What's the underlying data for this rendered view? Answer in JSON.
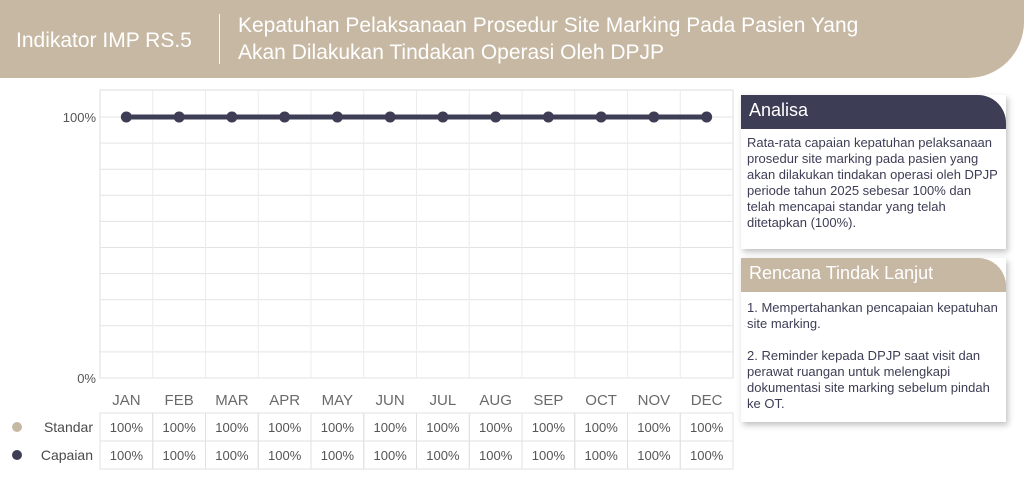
{
  "header": {
    "indicator": "Indikator IMP RS.5",
    "title_line1": "Kepatuhan Pelaksanaan Prosedur Site Marking Pada Pasien Yang",
    "title_line2": "Akan Dilakukan Tindakan Operasi Oleh DPJP"
  },
  "colors": {
    "header_bg": "#c7b8a3",
    "standar": "#c7b8a3",
    "capaian": "#3d3d55"
  },
  "chart_data": {
    "type": "line",
    "categories": [
      "JAN",
      "FEB",
      "MAR",
      "APR",
      "MAY",
      "JUN",
      "JUL",
      "AUG",
      "SEP",
      "OCT",
      "NOV",
      "DEC"
    ],
    "series": [
      {
        "name": "Standar",
        "values": [
          100,
          100,
          100,
          100,
          100,
          100,
          100,
          100,
          100,
          100,
          100,
          100
        ]
      },
      {
        "name": "Capaian",
        "values": [
          100,
          100,
          100,
          100,
          100,
          100,
          100,
          100,
          100,
          100,
          100,
          100
        ]
      }
    ],
    "table_values": {
      "standar": [
        "100%",
        "100%",
        "100%",
        "100%",
        "100%",
        "100%",
        "100%",
        "100%",
        "100%",
        "100%",
        "100%",
        "100%"
      ],
      "capaian": [
        "100%",
        "100%",
        "100%",
        "100%",
        "100%",
        "100%",
        "100%",
        "100%",
        "100%",
        "100%",
        "100%",
        "100%"
      ]
    },
    "yticks": [
      "100%",
      "0%"
    ],
    "ylim": [
      0,
      100
    ],
    "grid": true,
    "legend": "bottom-left"
  },
  "analisa": {
    "title": "Analisa",
    "text": "Rata-rata capaian kepatuhan pelaksanaan prosedur site marking pada pasien yang akan dilakukan tindakan operasi oleh DPJP periode tahun 2025  sebesar 100% dan telah mencapai standar yang telah ditetapkan (100%)."
  },
  "rtl": {
    "title": "Rencana Tindak Lanjut",
    "item1": "1. Mempertahankan pencapaian kepatuhan site marking.",
    "item2": "2. Reminder kepada DPJP saat visit dan perawat ruangan untuk melengkapi dokumentasi site marking sebelum pindah ke OT."
  }
}
